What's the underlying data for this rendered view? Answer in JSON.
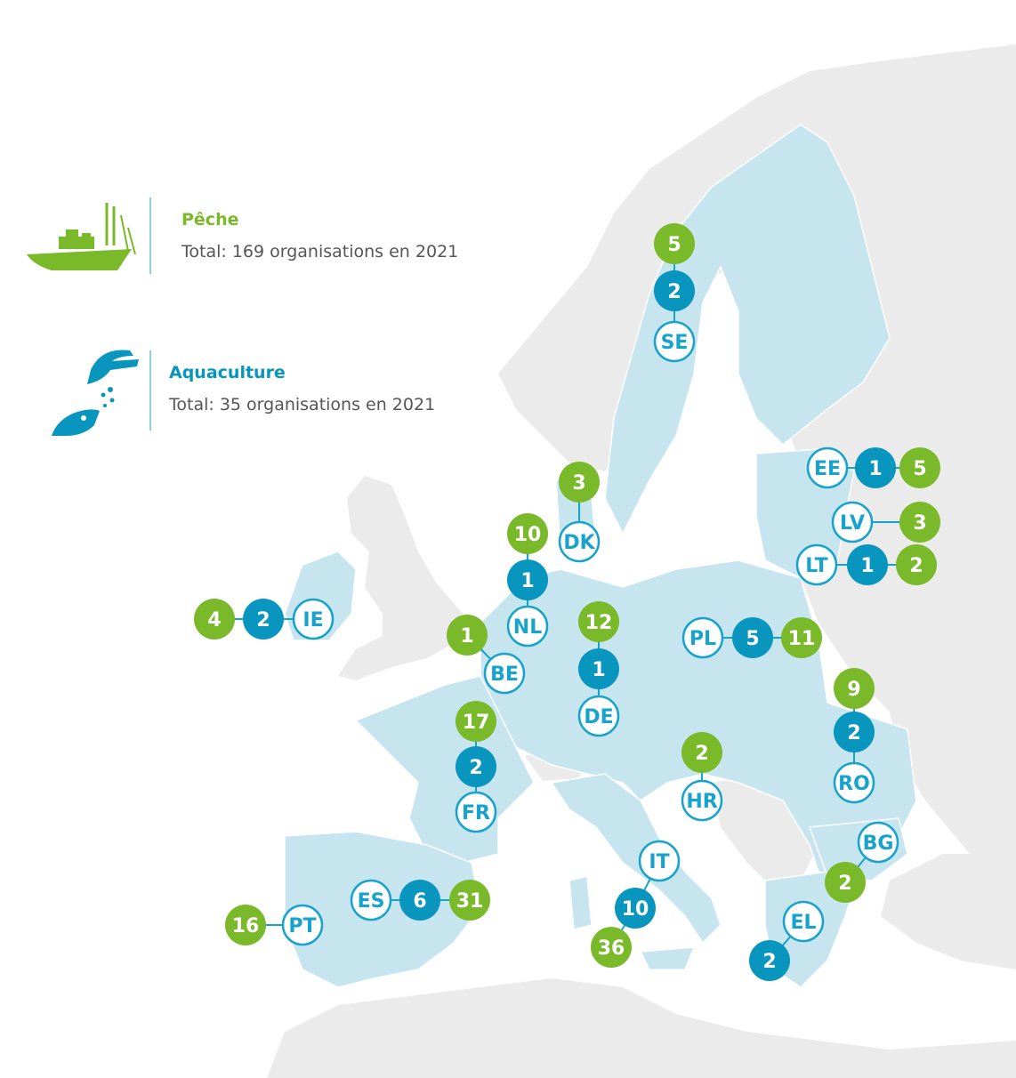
{
  "colors": {
    "fisheries": "#7ab929",
    "aquaculture": "#0895be",
    "country_fill": "#c7e5ee",
    "non_eu_fill": "#ebebeb",
    "sea": "#ffffff",
    "code_ring": "#17a3cb",
    "code_text": "#17a3cb"
  },
  "legend": {
    "fisheries": {
      "title": "Pêche",
      "total": "Total: 169 organisations en 2021",
      "icon": "fishing-boat-icon"
    },
    "aquaculture": {
      "title": "Aquaculture",
      "total": "Total: 35 organisations en 2021",
      "icon": "hand-feeding-fish-icon"
    }
  },
  "countries": [
    {
      "code": "SE",
      "fisheries": "5",
      "aquaculture": "2"
    },
    {
      "code": "EE",
      "fisheries": "5",
      "aquaculture": "1"
    },
    {
      "code": "LV",
      "fisheries": "3",
      "aquaculture": ""
    },
    {
      "code": "LT",
      "fisheries": "2",
      "aquaculture": "1"
    },
    {
      "code": "DK",
      "fisheries": "3",
      "aquaculture": ""
    },
    {
      "code": "NL",
      "fisheries": "10",
      "aquaculture": "1"
    },
    {
      "code": "IE",
      "fisheries": "4",
      "aquaculture": "2"
    },
    {
      "code": "BE",
      "fisheries": "1",
      "aquaculture": ""
    },
    {
      "code": "DE",
      "fisheries": "12",
      "aquaculture": "1"
    },
    {
      "code": "PL",
      "fisheries": "11",
      "aquaculture": "5"
    },
    {
      "code": "RO",
      "fisheries": "9",
      "aquaculture": "2"
    },
    {
      "code": "FR",
      "fisheries": "17",
      "aquaculture": "2"
    },
    {
      "code": "HR",
      "fisheries": "2",
      "aquaculture": ""
    },
    {
      "code": "BG",
      "fisheries": "2",
      "aquaculture": ""
    },
    {
      "code": "IT",
      "fisheries": "36",
      "aquaculture": "10"
    },
    {
      "code": "ES",
      "fisheries": "31",
      "aquaculture": "6"
    },
    {
      "code": "PT",
      "fisheries": "16",
      "aquaculture": ""
    },
    {
      "code": "EL",
      "fisheries": "",
      "aquaculture": "2"
    }
  ]
}
